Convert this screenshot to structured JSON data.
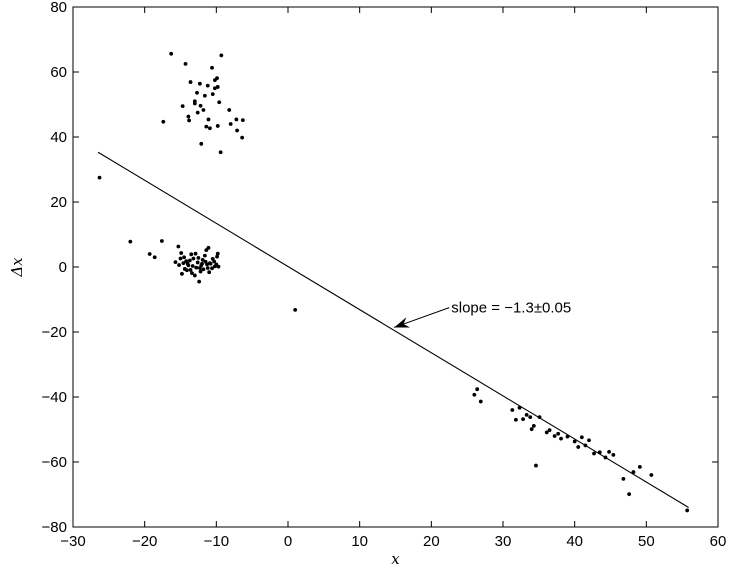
{
  "chart_data": {
    "type": "scatter",
    "xlabel": "x",
    "ylabel": "Δx",
    "xlim": [
      -30,
      60
    ],
    "ylim": [
      -80,
      80
    ],
    "xticks": [
      -30,
      -20,
      -10,
      0,
      10,
      20,
      30,
      40,
      50,
      60
    ],
    "yticks": [
      -80,
      -60,
      -40,
      -20,
      0,
      20,
      40,
      60,
      80
    ],
    "grid": false,
    "points": [
      [
        -26.3,
        27.5
      ],
      [
        -16.3,
        65.6
      ],
      [
        -14.3,
        62.5
      ],
      [
        -13.6,
        56.9
      ],
      [
        -12.3,
        56.4
      ],
      [
        -11.2,
        55.8
      ],
      [
        -10.2,
        55.0
      ],
      [
        -9.3,
        65.1
      ],
      [
        -9.9,
        58.1
      ],
      [
        -10.6,
        61.3
      ],
      [
        -10.5,
        53.2
      ],
      [
        -11.6,
        52.7
      ],
      [
        -12.7,
        53.6
      ],
      [
        -13.0,
        51.0
      ],
      [
        -12.2,
        49.6
      ],
      [
        -11.8,
        48.3
      ],
      [
        -12.6,
        47.5
      ],
      [
        -11.1,
        45.4
      ],
      [
        -9.6,
        50.7
      ],
      [
        -9.8,
        55.4
      ],
      [
        -10.2,
        57.5
      ],
      [
        -8.2,
        48.3
      ],
      [
        -7.2,
        45.4
      ],
      [
        -6.3,
        45.2
      ],
      [
        -8.0,
        44.0
      ],
      [
        -7.1,
        42.0
      ],
      [
        -6.4,
        39.8
      ],
      [
        -9.4,
        35.3
      ],
      [
        -9.8,
        43.4
      ],
      [
        -10.9,
        42.7
      ],
      [
        -11.4,
        43.2
      ],
      [
        -12.1,
        37.9
      ],
      [
        -13.9,
        46.3
      ],
      [
        -13.8,
        45.1
      ],
      [
        -14.7,
        49.5
      ],
      [
        -17.4,
        44.7
      ],
      [
        -13.0,
        50.3
      ],
      [
        -22.0,
        7.8
      ],
      [
        -17.6,
        8.0
      ],
      [
        -18.6,
        3.0
      ],
      [
        -19.3,
        4.0
      ],
      [
        -15.3,
        6.3
      ],
      [
        -14.9,
        4.3
      ],
      [
        -14.5,
        3.0
      ],
      [
        -14.2,
        1.8
      ],
      [
        -13.9,
        0.5
      ],
      [
        -13.6,
        -0.9
      ],
      [
        -13.2,
        2.6
      ],
      [
        -12.9,
        4.1
      ],
      [
        -12.6,
        1.4
      ],
      [
        -12.3,
        -0.3
      ],
      [
        -11.9,
        2.2
      ],
      [
        -11.6,
        3.5
      ],
      [
        -11.3,
        0.8
      ],
      [
        -11.0,
        -1.6
      ],
      [
        -10.8,
        1.0
      ],
      [
        -10.5,
        2.5
      ],
      [
        -10.2,
        0.2
      ],
      [
        -9.9,
        3.2
      ],
      [
        -9.8,
        4.1
      ],
      [
        -15.7,
        1.5
      ],
      [
        -15.2,
        0.6
      ],
      [
        -14.8,
        -2.1
      ],
      [
        -14.4,
        -0.6
      ],
      [
        -14.0,
        1.0
      ],
      [
        -13.7,
        2.0
      ],
      [
        -13.4,
        -1.9
      ],
      [
        -13.0,
        -2.6
      ],
      [
        -12.8,
        -0.2
      ],
      [
        -12.4,
        -4.5
      ],
      [
        -12.1,
        0.5
      ],
      [
        -11.8,
        -0.7
      ],
      [
        -11.5,
        1.6
      ],
      [
        -11.2,
        -0.3
      ],
      [
        -10.9,
        1.2
      ],
      [
        -10.6,
        -0.4
      ],
      [
        -10.3,
        1.7
      ],
      [
        -10.0,
        0.8
      ],
      [
        -9.7,
        0.1
      ],
      [
        -15.0,
        2.6
      ],
      [
        -14.6,
        1.2
      ],
      [
        -13.3,
        0.3
      ],
      [
        -12.0,
        1.0
      ],
      [
        -11.4,
        5.2
      ],
      [
        -11.1,
        5.9
      ],
      [
        -12.5,
        2.8
      ],
      [
        -13.5,
        3.9
      ],
      [
        -12.2,
        -1.4
      ],
      [
        -14.1,
        -1.0
      ],
      [
        1.0,
        -13.2
      ],
      [
        26.0,
        -39.3
      ],
      [
        26.4,
        -37.6
      ],
      [
        26.9,
        -41.4
      ],
      [
        31.3,
        -44.0
      ],
      [
        31.8,
        -47.0
      ],
      [
        32.3,
        -43.3
      ],
      [
        32.8,
        -46.8
      ],
      [
        33.3,
        -45.5
      ],
      [
        33.8,
        -46.2
      ],
      [
        34.0,
        -49.9
      ],
      [
        34.3,
        -48.9
      ],
      [
        34.6,
        -61.1
      ],
      [
        35.1,
        -46.2
      ],
      [
        36.1,
        -50.9
      ],
      [
        36.5,
        -50.2
      ],
      [
        37.2,
        -52.0
      ],
      [
        37.7,
        -51.3
      ],
      [
        38.1,
        -52.8
      ],
      [
        39.0,
        -52.2
      ],
      [
        40.0,
        -53.7
      ],
      [
        40.5,
        -55.4
      ],
      [
        41.0,
        -52.4
      ],
      [
        41.5,
        -54.9
      ],
      [
        42.0,
        -53.3
      ],
      [
        42.7,
        -57.4
      ],
      [
        43.5,
        -57.0
      ],
      [
        44.3,
        -58.6
      ],
      [
        44.8,
        -56.9
      ],
      [
        45.4,
        -57.8
      ],
      [
        46.8,
        -65.2
      ],
      [
        47.6,
        -69.9
      ],
      [
        48.2,
        -63.1
      ],
      [
        49.1,
        -61.5
      ],
      [
        50.7,
        -64.0
      ],
      [
        55.7,
        -74.9
      ]
    ],
    "fit_line": {
      "x": [
        -26.5,
        55.9
      ],
      "y": [
        35.3,
        -74.0
      ]
    },
    "annotation": {
      "text": "slope = −1.3±0.05",
      "arrow_to": [
        14.8,
        -18.6
      ],
      "text_at": [
        22.5,
        -12.5
      ]
    }
  }
}
